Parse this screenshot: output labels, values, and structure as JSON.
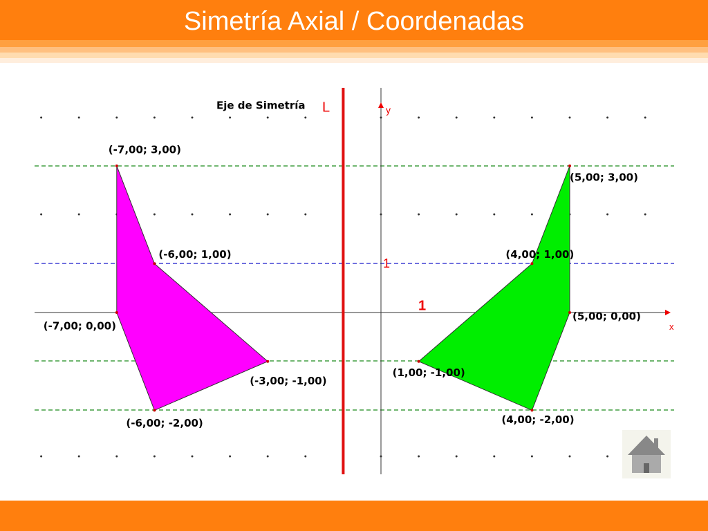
{
  "header": {
    "title": "Simetría Axial / Coordenadas"
  },
  "figure": {
    "axis_label": "Eje de Simetría",
    "axis_name": "L",
    "y_axis_label": "y",
    "x_axis_label": "x",
    "unit_y_label": "1",
    "unit_x_label": "1",
    "left_polygon": {
      "color": "#ff00ff",
      "vertices": [
        {
          "x": -7,
          "y": 3,
          "label": "(-7,00; 3,00)"
        },
        {
          "x": -6,
          "y": 1,
          "label": "(-6,00; 1,00)"
        },
        {
          "x": -3,
          "y": -1,
          "label": "(-3,00; -1,00)"
        },
        {
          "x": -6,
          "y": -2,
          "label": "(-6,00; -2,00)"
        },
        {
          "x": -7,
          "y": 0,
          "label": "(-7,00; 0,00)"
        }
      ]
    },
    "right_polygon": {
      "color": "#00ee00",
      "vertices": [
        {
          "x": 5,
          "y": 3,
          "label": "(5,00; 3,00)"
        },
        {
          "x": 4,
          "y": 1,
          "label": "(4,00; 1,00)"
        },
        {
          "x": 1,
          "y": -1,
          "label": "(1,00; -1,00)"
        },
        {
          "x": 4,
          "y": -2,
          "label": "(4,00; -2,00)"
        },
        {
          "x": 5,
          "y": 0,
          "label": "(5,00; 0,00)"
        }
      ]
    },
    "symmetry_axis_x": -1
  }
}
